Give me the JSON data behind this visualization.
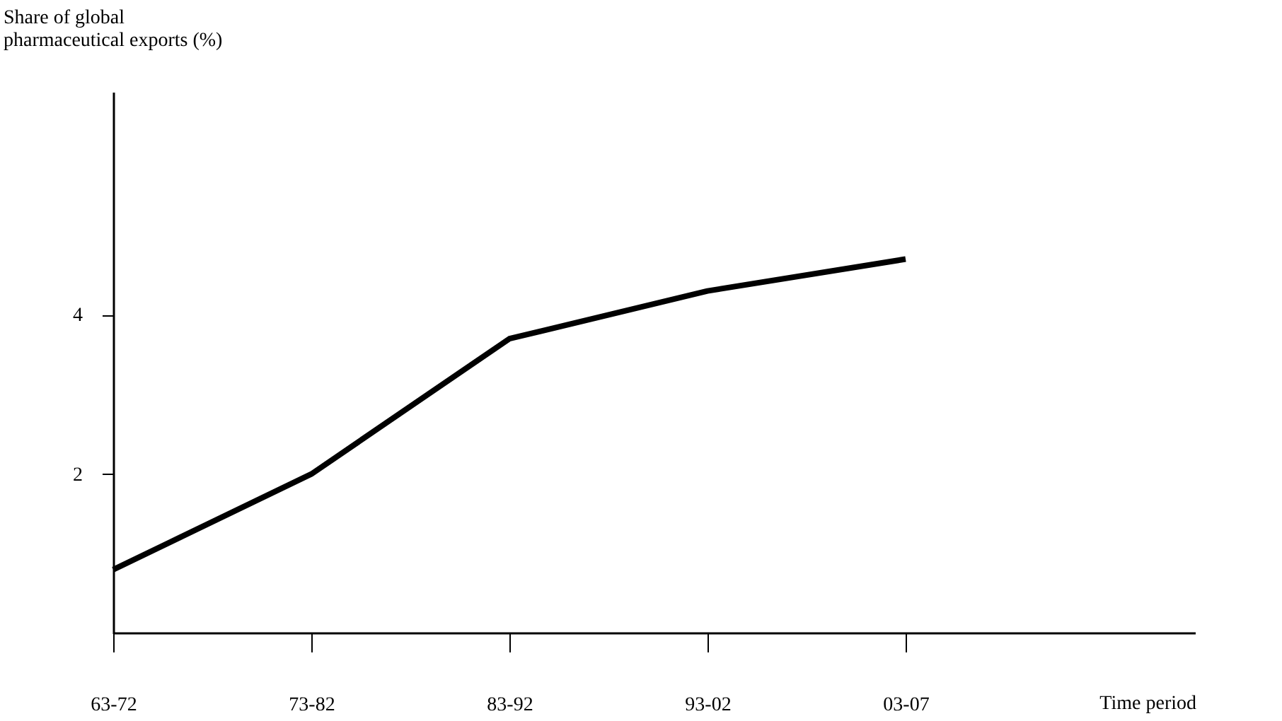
{
  "chart_data": {
    "type": "line",
    "ylabel": "Share of global\npharmaceutical exports (%)",
    "xlabel": "Time period",
    "categories": [
      "63-72",
      "73-82",
      "83-92",
      "93-02",
      "03-07"
    ],
    "series": [
      {
        "color": "#000000",
        "values": [
          0.8,
          2.0,
          3.7,
          4.3,
          4.7
        ]
      }
    ],
    "ylim": [
      0,
      6.8
    ],
    "yticks": [
      2,
      4
    ],
    "grid": false,
    "marker": "none",
    "line_style": "solid"
  }
}
